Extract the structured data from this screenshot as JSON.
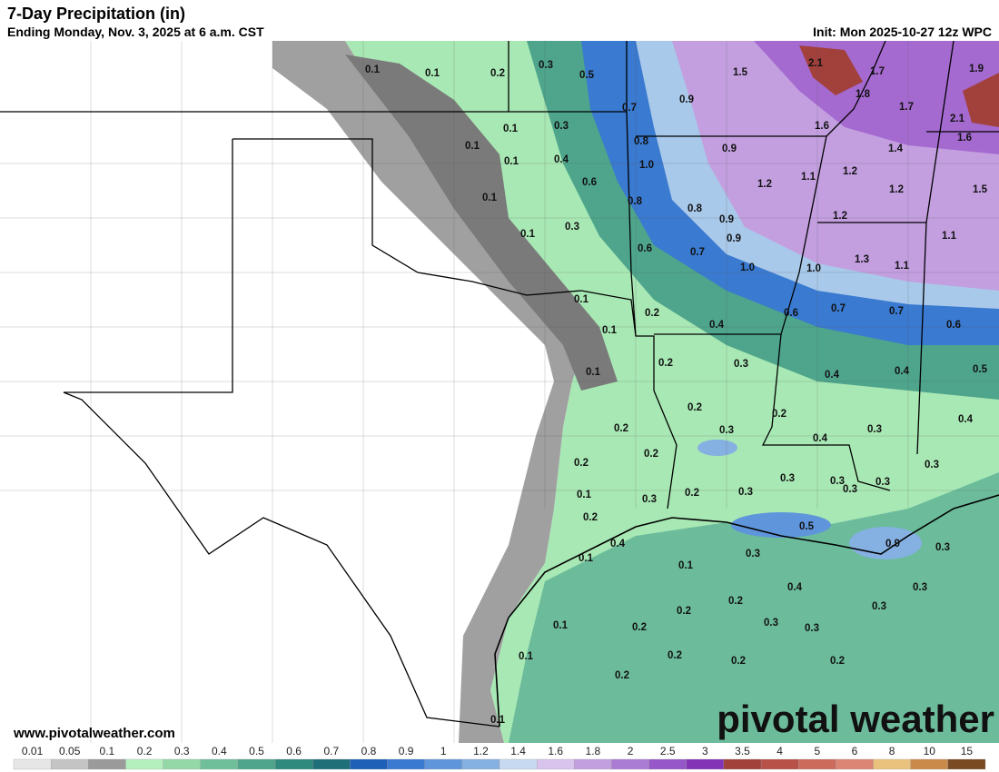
{
  "header": {
    "title": "7-Day Precipitation (in)",
    "subtitle": "Ending Monday, Nov. 3, 2025 at 6 a.m. CST",
    "init": "Init: Mon 2025-10-27 12z WPC"
  },
  "map": {
    "values": [
      "0.1",
      "0.1",
      "0.2",
      "0.3",
      "0.5",
      "1.5",
      "2.1",
      "1.7",
      "1.9",
      "0.9",
      "1.8",
      "1.7",
      "2.1",
      "0.7",
      "0.1",
      "0.1",
      "0.3",
      "1.6",
      "0.8",
      "0.9",
      "1.4",
      "1.6",
      "0.1",
      "0.4",
      "1.0",
      "1.1",
      "1.2",
      "0.6",
      "1.2",
      "1.2",
      "1.5",
      "0.1",
      "0.8",
      "0.8",
      "0.9",
      "1.2",
      "0.3",
      "0.1",
      "0.9",
      "0.6",
      "0.7",
      "1.1",
      "1.3",
      "1.0",
      "1.0",
      "1.1",
      "0.1",
      "0.2",
      "0.4",
      "0.6",
      "0.7",
      "0.7",
      "0.6",
      "0.1",
      "0.2",
      "0.3",
      "0.1",
      "0.4",
      "0.4",
      "0.5",
      "0.2",
      "0.2",
      "0.2",
      "0.3",
      "0.3",
      "0.4",
      "0.4",
      "0.2",
      "0.2",
      "0.3",
      "0.3",
      "0.3",
      "0.1",
      "0.3",
      "0.2",
      "0.3",
      "0.3",
      "0.3",
      "0.2",
      "0.5",
      "0.4",
      "0.1",
      "0.9",
      "0.3",
      "0.3",
      "0.1",
      "0.4",
      "0.3",
      "0.2",
      "0.3",
      "0.2",
      "0.3",
      "0.3",
      "0.1",
      "0.2",
      "0.1",
      "0.2",
      "0.2",
      "0.2",
      "0.2",
      "0.1"
    ]
  },
  "footer": {
    "site": "www.pivotalweather.com",
    "brand": "pivotal weather"
  },
  "legend": {
    "labels": [
      "0.01",
      "0.05",
      "0.1",
      "0.2",
      "0.3",
      "0.4",
      "0.5",
      "0.6",
      "0.7",
      "0.8",
      "0.9",
      "1",
      "1.2",
      "1.4",
      "1.6",
      "1.8",
      "2",
      "2.5",
      "3",
      "3.5",
      "4",
      "5",
      "6",
      "8",
      "10",
      "15"
    ],
    "colors": [
      "#e6e6e6",
      "#c4c4c4",
      "#9a9a9a",
      "#b4f0be",
      "#94d8a8",
      "#6fc09a",
      "#4ea58c",
      "#2e8a7d",
      "#1f6f78",
      "#1e5fb8",
      "#3a7ad0",
      "#5f95da",
      "#85b0e2",
      "#c7d9f0",
      "#d8c4ec",
      "#c2a0e0",
      "#ab7cd4",
      "#9657c8",
      "#8233b6",
      "#a2403c",
      "#b85148",
      "#cc6a5c",
      "#dc8575",
      "#eac27e",
      "#c98a4a",
      "#7a4a22"
    ]
  }
}
